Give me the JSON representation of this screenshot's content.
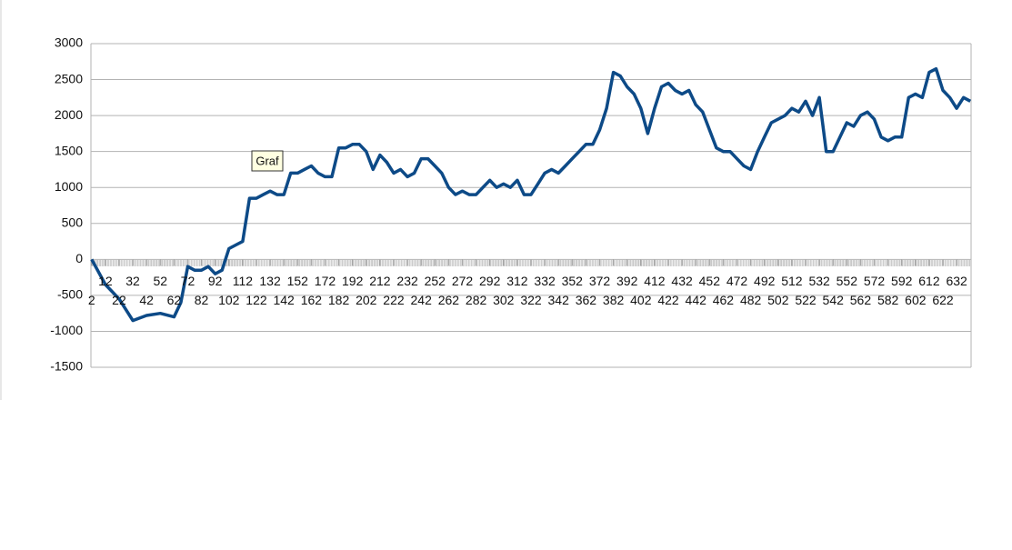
{
  "chart_data": {
    "type": "line",
    "tooltip": "Graf",
    "x": [
      2,
      12,
      22,
      32,
      42,
      52,
      62,
      67,
      72,
      77,
      82,
      87,
      92,
      97,
      102,
      107,
      112,
      117,
      122,
      127,
      132,
      137,
      142,
      147,
      152,
      157,
      162,
      167,
      172,
      177,
      182,
      187,
      192,
      197,
      202,
      207,
      212,
      217,
      222,
      227,
      232,
      237,
      242,
      247,
      252,
      257,
      262,
      267,
      272,
      277,
      282,
      287,
      292,
      297,
      302,
      307,
      312,
      317,
      322,
      327,
      332,
      337,
      342,
      347,
      352,
      357,
      362,
      367,
      372,
      377,
      382,
      387,
      392,
      397,
      402,
      407,
      412,
      417,
      422,
      427,
      432,
      437,
      442,
      447,
      452,
      457,
      462,
      467,
      472,
      477,
      482,
      487,
      492,
      497,
      502,
      507,
      512,
      517,
      522,
      527,
      532,
      537,
      542,
      547,
      552,
      557,
      562,
      567,
      572,
      577,
      582,
      587,
      592,
      597,
      602,
      607,
      612,
      617,
      622,
      627,
      632,
      637,
      642
    ],
    "series": [
      {
        "color": "#0d4a87",
        "values": [
          0,
          -350,
          -550,
          -850,
          -780,
          -750,
          -800,
          -600,
          -100,
          -150,
          -150,
          -100,
          -200,
          -150,
          150,
          200,
          250,
          850,
          850,
          900,
          950,
          900,
          900,
          1200,
          1200,
          1250,
          1300,
          1200,
          1150,
          1150,
          1550,
          1550,
          1600,
          1600,
          1500,
          1250,
          1450,
          1350,
          1200,
          1250,
          1150,
          1200,
          1400,
          1400,
          1300,
          1200,
          1000,
          900,
          950,
          900,
          900,
          1000,
          1100,
          1000,
          1050,
          1000,
          1100,
          900,
          900,
          1050,
          1200,
          1250,
          1200,
          1300,
          1400,
          1500,
          1600,
          1600,
          1800,
          2100,
          2600,
          2550,
          2400,
          2300,
          2100,
          1750,
          2100,
          2400,
          2450,
          2350,
          2300,
          2350,
          2150,
          2050,
          1800,
          1550,
          1500,
          1500,
          1400,
          1300,
          1250,
          1500,
          1700,
          1900,
          1950,
          2000,
          2100,
          2050,
          2200,
          2000,
          2250,
          1500,
          1500,
          1700,
          1900,
          1850,
          2000,
          2050,
          1950,
          1700,
          1650,
          1700,
          1700,
          2250,
          2300,
          2250,
          2600,
          2650,
          2350,
          2250,
          2100,
          2250,
          2200
        ]
      }
    ],
    "xlim": [
      1.5,
      642.5
    ],
    "xticks": [
      2,
      12,
      22,
      32,
      42,
      52,
      62,
      72,
      82,
      92,
      102,
      112,
      122,
      132,
      142,
      152,
      162,
      172,
      182,
      192,
      202,
      212,
      222,
      232,
      242,
      252,
      262,
      272,
      282,
      292,
      302,
      312,
      322,
      332,
      342,
      352,
      362,
      372,
      382,
      392,
      402,
      412,
      422,
      432,
      442,
      452,
      462,
      472,
      482,
      492,
      502,
      512,
      522,
      532,
      542,
      552,
      562,
      572,
      582,
      592,
      602,
      612,
      622,
      632
    ],
    "ylim": [
      -1500,
      3000
    ],
    "yticks": [
      -1500,
      -1000,
      -500,
      0,
      500,
      1000,
      1500,
      2000,
      2500,
      3000
    ],
    "grid": true
  }
}
